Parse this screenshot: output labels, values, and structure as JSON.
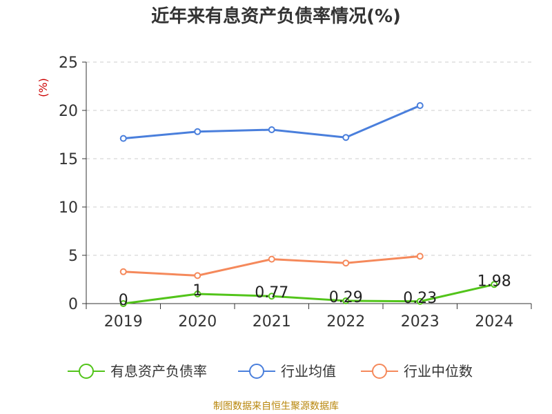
{
  "chart_data": {
    "type": "line",
    "title": "近年来有息资产负债率情况(%)",
    "ylabel": "(%)",
    "xlabel": "",
    "categories": [
      "2019",
      "2020",
      "2021",
      "2022",
      "2023",
      "2024"
    ],
    "ylim": [
      0,
      25
    ],
    "yticks": [
      "0",
      "5",
      "10",
      "15",
      "20",
      "25"
    ],
    "grid": true,
    "legend_position": "bottom",
    "series": [
      {
        "name": "有息资产负债率",
        "color": "#52c41a",
        "values": [
          0,
          1,
          0.77,
          0.29,
          0.23,
          1.98
        ],
        "labels": [
          "0",
          "1",
          "0.77",
          "0.29",
          "0.23",
          "1.98"
        ]
      },
      {
        "name": "行业均值",
        "color": "#4a7fdc",
        "values": [
          17.1,
          17.8,
          18.0,
          17.2,
          20.5,
          null
        ]
      },
      {
        "name": "行业中位数",
        "color": "#f5895b",
        "values": [
          3.3,
          2.9,
          4.6,
          4.2,
          4.9,
          null
        ]
      }
    ]
  },
  "footer": "制图数据来自恒生聚源数据库"
}
